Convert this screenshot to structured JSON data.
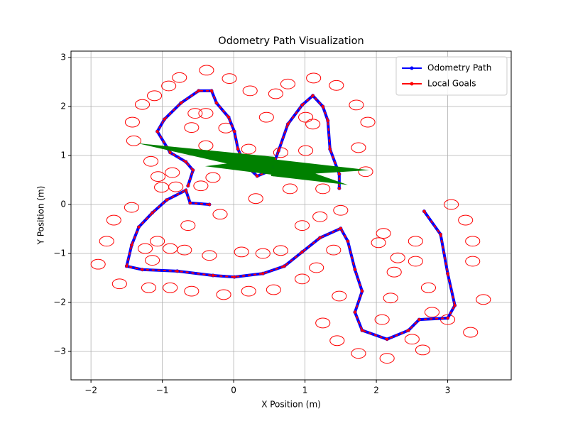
{
  "chart_data": {
    "type": "line",
    "title": "Odometry Path Visualization",
    "x_label": "X Position (m)",
    "y_label": "Y Position (m)",
    "xlim": [
      -2.28,
      3.89
    ],
    "ylim": [
      -3.58,
      3.13
    ],
    "xticks": [
      {
        "value": -2,
        "label": "−2"
      },
      {
        "value": -1,
        "label": "−1"
      },
      0,
      1,
      2,
      3
    ],
    "yticks": [
      {
        "value": -3,
        "label": "−3"
      },
      {
        "value": -2,
        "label": "−2"
      },
      {
        "value": -1,
        "label": "−1"
      },
      0,
      1,
      2,
      3
    ],
    "grid": true,
    "legend": "upper right",
    "series": [
      {
        "name": "Odometry Path",
        "color": "#0000ff",
        "x": [
          2.67,
          2.9,
          3.0,
          3.1,
          3.0,
          2.6,
          2.45,
          2.15,
          1.8,
          1.7,
          1.8,
          1.7,
          1.6,
          1.5,
          1.21,
          0.96,
          0.71,
          0.41,
          0.01,
          -0.29,
          -0.79,
          -1.28,
          -1.5,
          -1.43,
          -1.33,
          -1.14,
          -0.94,
          -0.67,
          -0.61,
          -0.34,
          null,
          -0.64,
          -0.57,
          -0.67,
          -0.89,
          -1.07,
          -0.97,
          -0.74,
          -0.49,
          -0.31,
          -0.24,
          -0.07,
          0.01,
          0.06,
          0.16,
          0.33,
          0.53,
          0.63,
          0.76,
          0.96,
          1.11,
          1.25,
          1.32,
          1.35,
          1.48,
          1.48
        ],
        "y": [
          -0.14,
          -0.61,
          -1.41,
          -2.06,
          -2.32,
          -2.35,
          -2.57,
          -2.75,
          -2.57,
          -2.2,
          -1.77,
          -1.33,
          -0.75,
          -0.49,
          -0.68,
          -0.97,
          -1.26,
          -1.41,
          -1.48,
          -1.45,
          -1.36,
          -1.33,
          -1.26,
          -0.83,
          -0.46,
          -0.17,
          0.09,
          0.29,
          0.03,
          0.0,
          null,
          0.38,
          0.7,
          0.87,
          1.06,
          1.49,
          1.74,
          2.07,
          2.32,
          2.32,
          2.07,
          1.78,
          1.49,
          1.13,
          0.81,
          0.58,
          0.7,
          1.1,
          1.64,
          2.03,
          2.22,
          2.0,
          1.71,
          1.13,
          0.62,
          0.33
        ]
      },
      {
        "name": "Local Goals",
        "color": "#ff0000",
        "x": [
          2.67,
          2.9,
          3.0,
          3.1,
          3.0,
          2.6,
          2.45,
          2.15,
          1.8,
          1.7,
          1.8,
          1.7,
          1.6,
          1.5,
          1.21,
          0.96,
          0.71,
          0.41,
          0.01,
          -0.29,
          -0.79,
          -1.28,
          -1.5,
          -1.43,
          -1.33,
          -1.14,
          -0.94,
          -0.67,
          -0.61,
          -0.34,
          null,
          -0.64,
          -0.57,
          -0.67,
          -0.89,
          -1.07,
          -0.97,
          -0.74,
          -0.49,
          -0.31,
          -0.24,
          -0.07,
          0.01,
          0.06,
          0.16,
          0.33,
          0.53,
          0.63,
          0.76,
          0.96,
          1.11,
          1.25,
          1.32,
          1.35,
          1.48,
          1.48
        ],
        "y": [
          -0.14,
          -0.61,
          -1.41,
          -2.06,
          -2.32,
          -2.35,
          -2.57,
          -2.75,
          -2.57,
          -2.2,
          -1.77,
          -1.33,
          -0.75,
          -0.49,
          -0.68,
          -0.97,
          -1.26,
          -1.41,
          -1.48,
          -1.45,
          -1.36,
          -1.33,
          -1.26,
          -0.83,
          -0.46,
          -0.17,
          0.09,
          0.29,
          0.03,
          0.0,
          null,
          0.38,
          0.7,
          0.87,
          1.06,
          1.49,
          1.74,
          2.07,
          2.32,
          2.32,
          2.07,
          1.78,
          1.49,
          1.13,
          0.81,
          0.58,
          0.7,
          1.1,
          1.64,
          2.03,
          2.22,
          2.0,
          1.71,
          1.13,
          0.62,
          0.33
        ]
      }
    ],
    "circles": {
      "color": "#ff0000",
      "radius": 0.1,
      "x": [
        -0.76,
        -0.38,
        -0.06,
        -0.91,
        -1.11,
        -1.28,
        -1.42,
        -1.4,
        -1.16,
        -0.86,
        -1.06,
        -1.01,
        -0.81,
        -0.54,
        -0.39,
        -0.59,
        -0.39,
        -0.29,
        -0.46,
        0.23,
        0.59,
        0.76,
        1.12,
        1.44,
        1.72,
        1.88,
        1.75,
        0.46,
        1.01,
        1.11,
        0.66,
        1.01,
        0.21,
        1.85,
        0.79,
        1.25,
        0.31,
        -0.19,
        -0.64,
        -1.07,
        -1.43,
        -1.68,
        -1.78,
        -1.9,
        -1.6,
        -1.19,
        -0.89,
        -0.59,
        -0.14,
        0.21,
        0.56,
        0.96,
        0.66,
        0.11,
        -0.34,
        -0.89,
        -1.24,
        -1.14,
        0.96,
        1.21,
        1.5,
        1.4,
        1.16,
        1.48,
        1.25,
        1.45,
        1.75,
        2.15,
        2.65,
        3.0,
        2.73,
        2.55,
        2.3,
        2.03,
        2.25,
        2.2,
        2.08,
        2.5,
        3.05,
        3.25,
        3.35,
        3.35,
        3.5,
        3.32,
        2.1,
        2.55,
        2.78,
        0.41,
        -0.69,
        -0.11
      ],
      "y": [
        2.59,
        2.74,
        2.57,
        2.42,
        2.22,
        2.04,
        1.68,
        1.3,
        0.88,
        0.65,
        0.57,
        0.35,
        0.36,
        1.86,
        1.86,
        1.57,
        1.2,
        0.55,
        0.38,
        2.32,
        2.26,
        2.46,
        2.58,
        2.43,
        2.03,
        1.68,
        1.16,
        1.78,
        1.78,
        1.64,
        1.06,
        1.1,
        1.13,
        0.67,
        0.32,
        0.32,
        0.12,
        -0.2,
        -0.43,
        -0.75,
        -0.06,
        -0.32,
        -0.75,
        -1.22,
        -1.62,
        -1.7,
        -1.7,
        -1.77,
        -1.84,
        -1.77,
        -1.74,
        -1.52,
        -0.94,
        -0.97,
        -1.04,
        -0.9,
        -0.9,
        -1.14,
        -0.43,
        -0.25,
        -0.12,
        -0.93,
        -1.29,
        -1.87,
        -2.42,
        -2.78,
        -3.04,
        -3.14,
        -2.97,
        -2.35,
        -1.7,
        -1.16,
        -1.09,
        -0.78,
        -1.38,
        -1.91,
        -2.35,
        -2.75,
        0.0,
        -0.32,
        -0.75,
        -1.16,
        -1.94,
        -2.61,
        -0.59,
        -0.75,
        -2.2,
        -1.0,
        -0.93,
        1.56
      ]
    },
    "quiver": {
      "color": "#008000",
      "x": [
        0.55,
        0.55,
        0.55,
        0.55,
        0.55
      ],
      "y": [
        0.8,
        0.75,
        0.75,
        0.8,
        0.78
      ],
      "u": [
        -1.9,
        1.35,
        1.05,
        -0.55,
        -0.95
      ],
      "v": [
        0.45,
        -0.05,
        -0.35,
        0.25,
        0.0
      ]
    }
  }
}
